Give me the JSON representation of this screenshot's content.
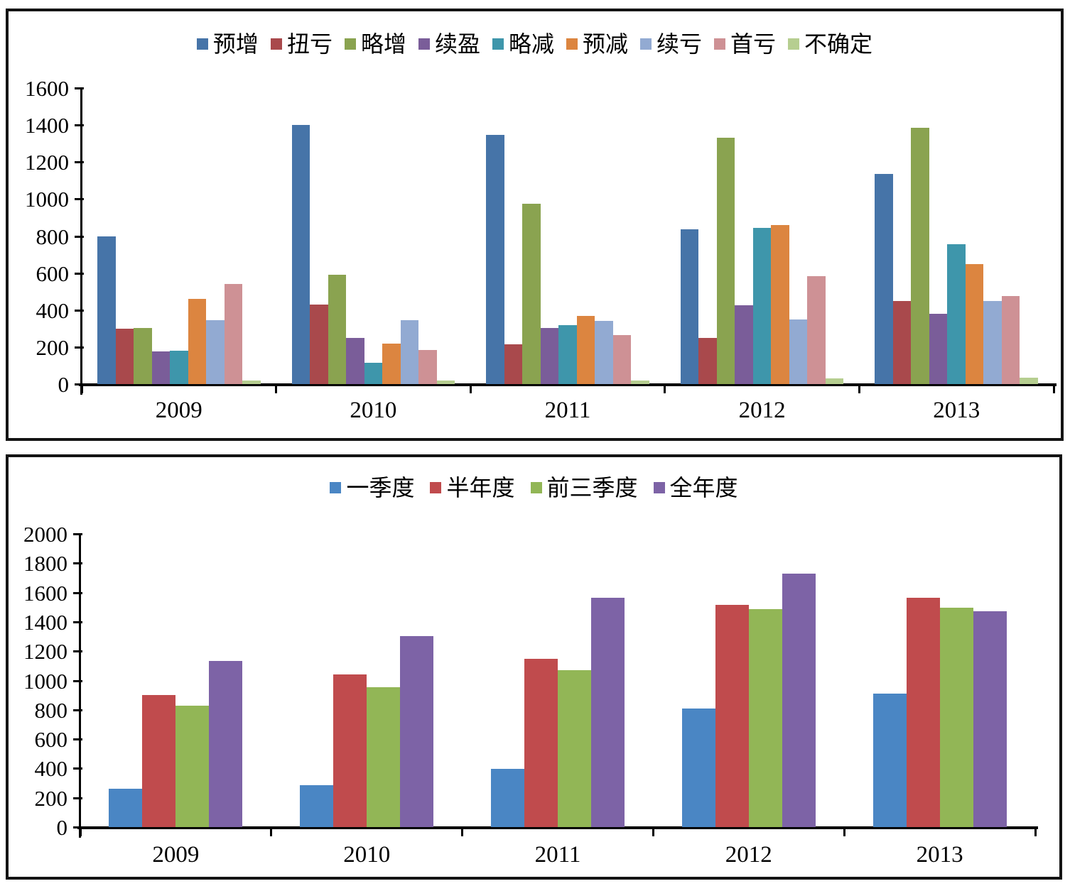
{
  "chart_data": [
    {
      "id": "top",
      "type": "bar",
      "title": "",
      "xlabel": "",
      "ylabel": "",
      "grid": false,
      "legend_position": "top-center",
      "categories": [
        "2009",
        "2010",
        "2011",
        "2012",
        "2013"
      ],
      "ylim": [
        0,
        1600
      ],
      "ytick_step": 200,
      "series": [
        {
          "name": "预增",
          "color": "#4674A8",
          "values": [
            800,
            1400,
            1345,
            835,
            1135
          ]
        },
        {
          "name": "扭亏",
          "color": "#A9494C",
          "values": [
            300,
            430,
            215,
            250,
            450
          ]
        },
        {
          "name": "略增",
          "color": "#8AA350",
          "values": [
            305,
            590,
            975,
            1330,
            1385
          ]
        },
        {
          "name": "续盈",
          "color": "#7A5D99",
          "values": [
            175,
            250,
            305,
            425,
            380
          ]
        },
        {
          "name": "略减",
          "color": "#3E96AB",
          "values": [
            180,
            115,
            320,
            845,
            755
          ]
        },
        {
          "name": "预减",
          "color": "#DC8540",
          "values": [
            460,
            220,
            370,
            860,
            650
          ]
        },
        {
          "name": "续亏",
          "color": "#92AAD2",
          "values": [
            345,
            345,
            340,
            350,
            450
          ]
        },
        {
          "name": "首亏",
          "color": "#CE9195",
          "values": [
            540,
            185,
            265,
            585,
            475
          ]
        },
        {
          "name": "不确定",
          "color": "#B6CE90",
          "values": [
            20,
            20,
            20,
            30,
            35
          ]
        }
      ]
    },
    {
      "id": "bottom",
      "type": "bar",
      "title": "",
      "xlabel": "",
      "ylabel": "",
      "grid": false,
      "legend_position": "top-center",
      "categories": [
        "2009",
        "2010",
        "2011",
        "2012",
        "2013"
      ],
      "ylim": [
        0,
        2000
      ],
      "ytick_step": 200,
      "series": [
        {
          "name": "一季度",
          "color": "#4A86C4",
          "values": [
            260,
            285,
            395,
            810,
            910
          ]
        },
        {
          "name": "半年度",
          "color": "#C04B4D",
          "values": [
            900,
            1040,
            1150,
            1515,
            1565
          ]
        },
        {
          "name": "前三季度",
          "color": "#92B656",
          "values": [
            830,
            955,
            1070,
            1485,
            1495
          ]
        },
        {
          "name": "全年度",
          "color": "#7D63A6",
          "values": [
            1135,
            1305,
            1565,
            1730,
            1470
          ]
        }
      ]
    }
  ]
}
